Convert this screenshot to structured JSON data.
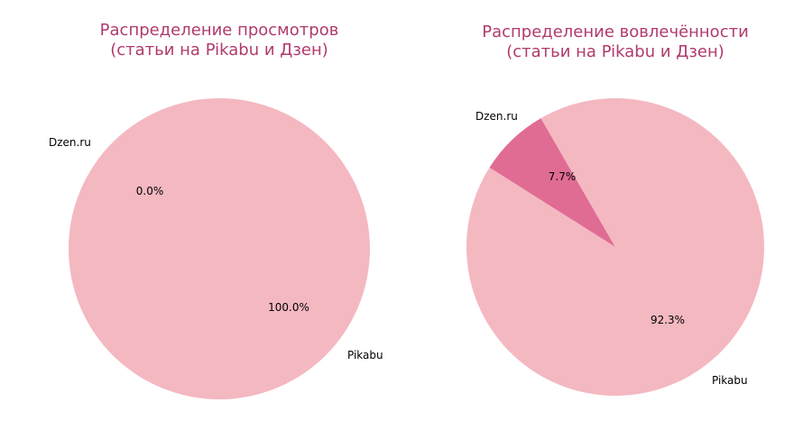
{
  "chart_data": [
    {
      "type": "pie",
      "title_lines": [
        "Распределение просмотров",
        "(статьи на Pikabu и Дзен)"
      ],
      "slices": [
        {
          "label": "Dzen.ru",
          "value": 0.0,
          "pct_label": "0.0%",
          "color": "#e06c94"
        },
        {
          "label": "Pikabu",
          "value": 100.0,
          "pct_label": "100.0%",
          "color": "#f4b8c1"
        }
      ]
    },
    {
      "type": "pie",
      "title_lines": [
        "Распределение вовлечённости",
        "(статьи на Pikabu и Дзен)"
      ],
      "slices": [
        {
          "label": "Dzen.ru",
          "value": 7.7,
          "pct_label": "7.7%",
          "color": "#e06c94"
        },
        {
          "label": "Pikabu",
          "value": 92.3,
          "pct_label": "92.3%",
          "color": "#f4b8c1"
        }
      ]
    }
  ]
}
